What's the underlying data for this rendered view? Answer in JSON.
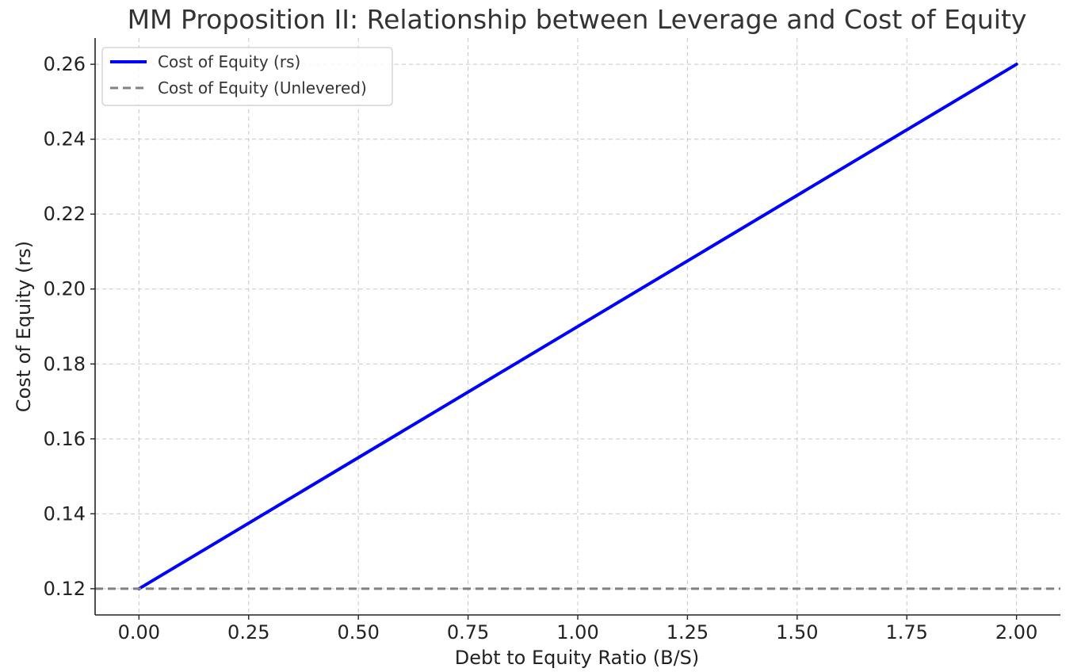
{
  "chart_data": {
    "type": "line",
    "title": "MM Proposition II: Relationship between Leverage and Cost of Equity",
    "xlabel": "Debt to Equity Ratio (B/S)",
    "ylabel": "Cost of Equity (rs)",
    "xlim": [
      -0.1,
      2.1
    ],
    "ylim": [
      0.113,
      0.267
    ],
    "xticks": [
      0.0,
      0.25,
      0.5,
      0.75,
      1.0,
      1.25,
      1.5,
      1.75,
      2.0
    ],
    "xtick_labels": [
      "0.00",
      "0.25",
      "0.50",
      "0.75",
      "1.00",
      "1.25",
      "1.50",
      "1.75",
      "2.00"
    ],
    "yticks": [
      0.12,
      0.14,
      0.16,
      0.18,
      0.2,
      0.22,
      0.24,
      0.26
    ],
    "ytick_labels": [
      "0.12",
      "0.14",
      "0.16",
      "0.18",
      "0.20",
      "0.22",
      "0.24",
      "0.26"
    ],
    "grid": true,
    "legend_position": "top-left",
    "series": [
      {
        "name": "Cost of Equity (rs)",
        "style": "solid",
        "color": "#0000ff",
        "x": [
          0.0,
          2.0
        ],
        "y": [
          0.12,
          0.26
        ]
      },
      {
        "name": "Cost of Equity (Unlevered)",
        "style": "dashed",
        "color": "#808080",
        "type": "hline",
        "y": 0.12
      }
    ]
  }
}
